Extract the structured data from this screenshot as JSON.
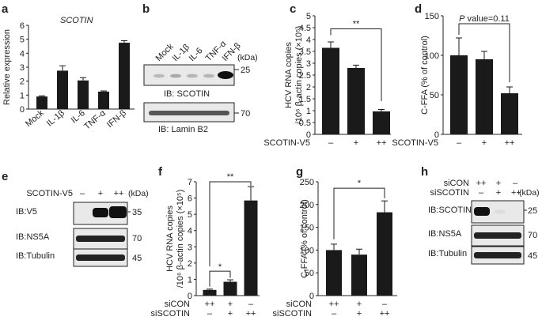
{
  "panels": {
    "a": "a",
    "b": "b",
    "c": "c",
    "d": "d",
    "e": "e",
    "f": "f",
    "g": "g",
    "h": "h"
  },
  "chart_data": [
    {
      "panel": "a",
      "type": "bar",
      "title": "SCOTIN",
      "categories": [
        "Mock",
        "IL-1β",
        "IL-6",
        "TNF-α",
        "IFN-β"
      ],
      "values": [
        0.9,
        2.75,
        2.05,
        1.25,
        4.75
      ],
      "errors": [
        0.05,
        0.35,
        0.2,
        0.05,
        0.15
      ],
      "ylabel": "Relative expression",
      "ylim": [
        0,
        6
      ],
      "yticks": [
        0,
        1,
        2,
        3,
        4,
        5,
        6
      ]
    },
    {
      "panel": "c",
      "type": "bar",
      "categories": [
        "–",
        "+",
        "++"
      ],
      "row_label": "SCOTIN-V5",
      "values": [
        3.65,
        2.8,
        0.97
      ],
      "errors": [
        0.25,
        0.12,
        0.08
      ],
      "ylabel_line1": "HCV RNA copies",
      "ylabel_line2": "/10⁶ β-actin copies (×10⁵)",
      "ylim": [
        0,
        5
      ],
      "yticks": [
        0,
        0.5,
        1,
        1.5,
        2,
        2.5,
        3,
        3.5,
        4,
        4.5,
        5
      ],
      "annotation": "**"
    },
    {
      "panel": "d",
      "type": "bar",
      "categories": [
        "–",
        "+",
        "++"
      ],
      "row_label": "SCOTIN-V5",
      "values": [
        100,
        95,
        52
      ],
      "errors": [
        22,
        10,
        8
      ],
      "ylabel": "C-FFA (% of control)",
      "ylim": [
        0,
        150
      ],
      "yticks": [
        0,
        50,
        100,
        150
      ],
      "annotation_italic": "P",
      "annotation": " value=0.11"
    },
    {
      "panel": "f",
      "type": "bar",
      "row1_label": "siCON",
      "row1": [
        "++",
        "+",
        "–"
      ],
      "row2_label": "siSCOTIN",
      "row2": [
        "–",
        "+",
        "++"
      ],
      "values": [
        0.35,
        0.85,
        5.85
      ],
      "errors": [
        0.05,
        0.12,
        0.85
      ],
      "ylabel_line1": "HCV RNA copies",
      "ylabel_line2": "/10⁶ β-actin copies (×10⁵)",
      "ylim": [
        0,
        7
      ],
      "yticks": [
        0,
        1,
        2,
        3,
        4,
        5,
        6,
        7
      ],
      "annotations": [
        "*",
        "**"
      ]
    },
    {
      "panel": "g",
      "type": "bar",
      "row1_label": "siCON",
      "row1": [
        "++",
        "+",
        "–"
      ],
      "row2_label": "siSCOTIN",
      "row2": [
        "–",
        "+",
        "++"
      ],
      "values": [
        100,
        90,
        183
      ],
      "errors": [
        13,
        12,
        25
      ],
      "ylabel": "C-FFA (% of control)",
      "ylim": [
        0,
        250
      ],
      "yticks": [
        0,
        50,
        100,
        150,
        200,
        250
      ],
      "annotation": "*"
    }
  ],
  "blot_b": {
    "lanes": [
      "Mock",
      "IL-1β",
      "IL-6",
      "TNF-α",
      "IFN-β"
    ],
    "kda": "(kDa)",
    "markers": [
      "25",
      "70"
    ],
    "labels": [
      "IB: SCOTIN",
      "IB: Lamin B2"
    ]
  },
  "blot_e": {
    "row_label": "SCOTIN-V5",
    "lanes": [
      "–",
      "+",
      "++"
    ],
    "kda": "(kDa)",
    "rows": [
      {
        "label": "IB:V5",
        "marker": "35"
      },
      {
        "label": "IB:NS5A",
        "marker": "70"
      },
      {
        "label": "IB:Tubulin",
        "marker": "45"
      }
    ]
  },
  "blot_h": {
    "row1_label": "siCON",
    "row1": [
      "++",
      "+",
      "–"
    ],
    "row2_label": "siSCOTIN",
    "row2": [
      "–",
      "+",
      "++"
    ],
    "kda": "(kDa)",
    "rows": [
      {
        "label": "IB:SCOTIN",
        "marker": "25"
      },
      {
        "label": "IB:NS5A",
        "marker": "70"
      },
      {
        "label": "IB:Tubulin",
        "marker": "45"
      }
    ]
  }
}
